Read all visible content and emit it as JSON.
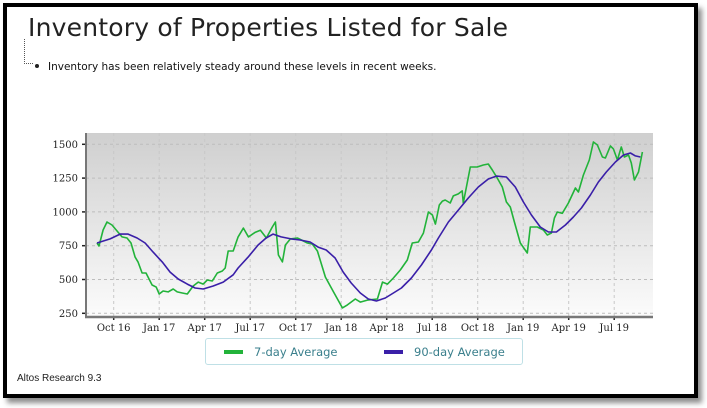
{
  "title": "Inventory of Properties Listed for Sale",
  "bullet": "Inventory has been relatively steady around these levels in recent weeks.",
  "footer": "Altos Research 9.3",
  "legend": {
    "items": [
      {
        "label": "7-day Average",
        "color": "#22b33a"
      },
      {
        "label": "90-day Average",
        "color": "#3a1fa8"
      }
    ]
  },
  "chart_data": {
    "type": "line",
    "title": "Inventory of Properties Listed for Sale",
    "xlabel": "",
    "ylabel": "",
    "ylim": [
      250,
      1600
    ],
    "yticks": [
      250,
      500,
      750,
      1000,
      1250,
      1500
    ],
    "xticks": [
      "Oct 16",
      "Jan 17",
      "Apr 17",
      "Jul 17",
      "Oct 17",
      "Jan 18",
      "Apr 18",
      "Jul 18",
      "Oct 18",
      "Jan 19",
      "Apr 19",
      "Jul 19"
    ],
    "x_unit": "months since Oct 2016 (Oct 16 = 0)",
    "grid": true,
    "legend_position": "bottom",
    "plot_background": "gradient gray-to-white",
    "series": [
      {
        "name": "7-day Average",
        "color": "#22b33a",
        "points": [
          [
            -1.1,
            770
          ],
          [
            -0.97,
            748
          ],
          [
            -0.7,
            866
          ],
          [
            -0.44,
            925
          ],
          [
            -0.11,
            903
          ],
          [
            0.28,
            851
          ],
          [
            0.55,
            815
          ],
          [
            0.88,
            807
          ],
          [
            1.14,
            770
          ],
          [
            1.41,
            666
          ],
          [
            1.6,
            630
          ],
          [
            1.87,
            548
          ],
          [
            2.13,
            548
          ],
          [
            2.53,
            459
          ],
          [
            2.8,
            444
          ],
          [
            3.0,
            393
          ],
          [
            3.26,
            415
          ],
          [
            3.59,
            408
          ],
          [
            3.92,
            430
          ],
          [
            4.19,
            408
          ],
          [
            4.52,
            400
          ],
          [
            4.85,
            393
          ],
          [
            5.24,
            452
          ],
          [
            5.57,
            481
          ],
          [
            5.9,
            466
          ],
          [
            6.17,
            496
          ],
          [
            6.5,
            489
          ],
          [
            6.83,
            548
          ],
          [
            7.16,
            563
          ],
          [
            7.35,
            585
          ],
          [
            7.55,
            711
          ],
          [
            7.88,
            711
          ],
          [
            8.2,
            815
          ],
          [
            8.55,
            880
          ],
          [
            8.88,
            815
          ],
          [
            9.34,
            850
          ],
          [
            9.67,
            865
          ],
          [
            10.07,
            807
          ],
          [
            10.46,
            888
          ],
          [
            10.66,
            925
          ],
          [
            10.86,
            681
          ],
          [
            11.12,
            630
          ],
          [
            11.32,
            755
          ],
          [
            11.65,
            800
          ],
          [
            12.11,
            807
          ],
          [
            12.77,
            770
          ],
          [
            13.1,
            762
          ],
          [
            13.43,
            711
          ],
          [
            13.96,
            518
          ],
          [
            14.49,
            408
          ],
          [
            15.08,
            290
          ],
          [
            15.41,
            312
          ],
          [
            15.93,
            356
          ],
          [
            16.26,
            333
          ],
          [
            16.73,
            348
          ],
          [
            17.39,
            356
          ],
          [
            17.72,
            481
          ],
          [
            18.05,
            466
          ],
          [
            18.44,
            511
          ],
          [
            18.9,
            570
          ],
          [
            19.36,
            644
          ],
          [
            19.69,
            770
          ],
          [
            20.09,
            777
          ],
          [
            20.42,
            843
          ],
          [
            20.75,
            999
          ],
          [
            21.01,
            977
          ],
          [
            21.21,
            910
          ],
          [
            21.47,
            1051
          ],
          [
            21.67,
            1080
          ],
          [
            21.86,
            1088
          ],
          [
            22.19,
            1066
          ],
          [
            22.39,
            1118
          ],
          [
            22.72,
            1133
          ],
          [
            22.98,
            1155
          ],
          [
            23.05,
            1066
          ],
          [
            23.51,
            1332
          ],
          [
            23.97,
            1332
          ],
          [
            24.37,
            1347
          ],
          [
            24.7,
            1354
          ],
          [
            24.96,
            1310
          ],
          [
            25.29,
            1250
          ],
          [
            25.62,
            1184
          ],
          [
            25.89,
            1073
          ],
          [
            26.15,
            1036
          ],
          [
            26.42,
            925
          ],
          [
            26.81,
            770
          ],
          [
            27.27,
            696
          ],
          [
            27.47,
            888
          ],
          [
            27.93,
            888
          ],
          [
            28.33,
            866
          ],
          [
            28.59,
            829
          ],
          [
            28.86,
            844
          ],
          [
            29.06,
            955
          ],
          [
            29.25,
            999
          ],
          [
            29.58,
            990
          ],
          [
            29.98,
            1066
          ],
          [
            30.44,
            1177
          ],
          [
            30.64,
            1147
          ],
          [
            30.97,
            1273
          ],
          [
            31.36,
            1384
          ],
          [
            31.63,
            1517
          ],
          [
            31.89,
            1495
          ],
          [
            32.22,
            1406
          ],
          [
            32.42,
            1399
          ],
          [
            32.75,
            1488
          ],
          [
            32.95,
            1466
          ],
          [
            33.21,
            1384
          ],
          [
            33.47,
            1480
          ],
          [
            33.67,
            1406
          ],
          [
            33.94,
            1421
          ],
          [
            34.13,
            1362
          ],
          [
            34.33,
            1236
          ],
          [
            34.6,
            1295
          ],
          [
            34.86,
            1443
          ]
        ]
      },
      {
        "name": "90-day Average",
        "color": "#3a1fa8",
        "points": [
          [
            -1.1,
            770
          ],
          [
            -0.24,
            800
          ],
          [
            0.42,
            836
          ],
          [
            0.95,
            836
          ],
          [
            1.54,
            807
          ],
          [
            2.07,
            770
          ],
          [
            2.6,
            703
          ],
          [
            3.2,
            630
          ],
          [
            3.72,
            555
          ],
          [
            4.25,
            504
          ],
          [
            4.85,
            466
          ],
          [
            5.37,
            437
          ],
          [
            5.9,
            430
          ],
          [
            6.56,
            452
          ],
          [
            7.22,
            481
          ],
          [
            7.88,
            535
          ],
          [
            8.2,
            585
          ],
          [
            8.86,
            666
          ],
          [
            9.52,
            755
          ],
          [
            10.05,
            807
          ],
          [
            10.51,
            836
          ],
          [
            11.04,
            815
          ],
          [
            11.7,
            800
          ],
          [
            12.29,
            792
          ],
          [
            12.95,
            777
          ],
          [
            13.48,
            740
          ],
          [
            14.01,
            718
          ],
          [
            14.6,
            659
          ],
          [
            15.13,
            555
          ],
          [
            15.66,
            474
          ],
          [
            16.26,
            400
          ],
          [
            16.79,
            356
          ],
          [
            17.32,
            341
          ],
          [
            17.91,
            363
          ],
          [
            18.44,
            400
          ],
          [
            18.97,
            437
          ],
          [
            19.63,
            511
          ],
          [
            20.29,
            607
          ],
          [
            20.95,
            718
          ],
          [
            21.41,
            807
          ],
          [
            22.07,
            925
          ],
          [
            22.73,
            1014
          ],
          [
            23.38,
            1103
          ],
          [
            24.04,
            1184
          ],
          [
            24.7,
            1243
          ],
          [
            25.23,
            1265
          ],
          [
            25.89,
            1258
          ],
          [
            26.48,
            1184
          ],
          [
            27.01,
            1073
          ],
          [
            27.54,
            977
          ],
          [
            28.13,
            888
          ],
          [
            28.66,
            851
          ],
          [
            29.19,
            851
          ],
          [
            29.78,
            903
          ],
          [
            30.31,
            962
          ],
          [
            30.84,
            1029
          ],
          [
            31.43,
            1125
          ],
          [
            31.96,
            1221
          ],
          [
            32.48,
            1295
          ],
          [
            33.08,
            1369
          ],
          [
            33.61,
            1421
          ],
          [
            34.07,
            1436
          ],
          [
            34.4,
            1414
          ],
          [
            34.73,
            1406
          ]
        ]
      }
    ]
  }
}
